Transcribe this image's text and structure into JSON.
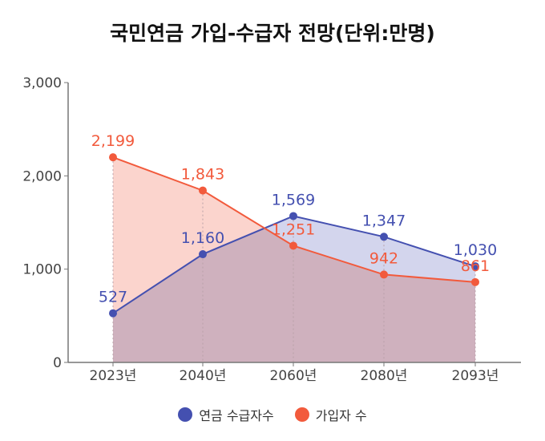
{
  "chart_data": {
    "type": "area",
    "title": "국민연금 가입-수급자 전망(단위:만명)",
    "categories": [
      "2023년",
      "2040년",
      "2060년",
      "2080년",
      "2093년"
    ],
    "ylim": [
      0,
      3000
    ],
    "yticks": [
      0,
      1000,
      2000,
      3000
    ],
    "ytick_labels": [
      "0",
      "1,000",
      "2,000",
      "3,000"
    ],
    "legend_position": "bottom",
    "series": [
      {
        "name": "연금 수급자수",
        "values": [
          527,
          1160,
          1569,
          1347,
          1030
        ],
        "labels": [
          "527",
          "1,160",
          "1,569",
          "1,347",
          "1,030"
        ],
        "color": "#4450b0",
        "fill": "#c8cbe8"
      },
      {
        "name": "가입자 수",
        "values": [
          2199,
          1843,
          1251,
          942,
          861
        ],
        "labels": [
          "2,199",
          "1,843",
          "1,251",
          "942",
          "861"
        ],
        "color": "#f25a3c",
        "fill": "#f9c6bc"
      }
    ]
  }
}
